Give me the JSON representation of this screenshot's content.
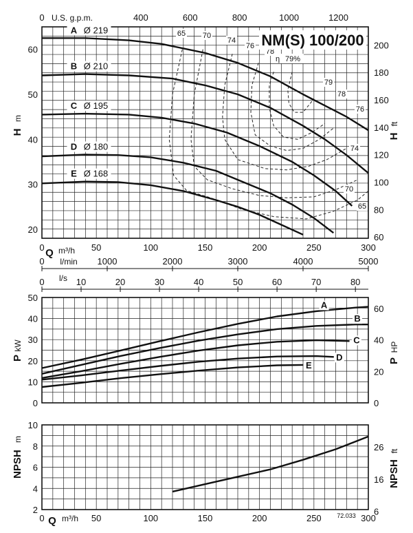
{
  "chart_data": [
    {
      "type": "line",
      "panel": "head",
      "title": "NM(S) 100/200",
      "eta_label": "η",
      "ylabel_left": "H",
      "ylabel_left_unit": "m",
      "ylabel_right": "H",
      "ylabel_right_unit": "ft",
      "xlabel": "Q",
      "xlabel_unit": "m³/h",
      "xlim": [
        0,
        300
      ],
      "ylim": [
        18,
        65
      ],
      "y_ticks": [
        20,
        30,
        40,
        50,
        60
      ],
      "y_right_ticks": [
        60,
        80,
        100,
        120,
        140,
        160,
        180,
        200
      ],
      "x_ticks": [
        0,
        50,
        100,
        150,
        200,
        250,
        300
      ],
      "top_axis_label": "U.S. g.p.m.",
      "top_axis_ticks": [
        0,
        400,
        600,
        800,
        1000,
        1200
      ],
      "grid": true,
      "series": [
        {
          "name": "A",
          "diameter_label": "Ø 219",
          "x": [
            0,
            40,
            80,
            110,
            150,
            180,
            210,
            240,
            260,
            280,
            300
          ],
          "y": [
            62.5,
            62.5,
            62.0,
            61.2,
            59.2,
            57.0,
            54.0,
            50.0,
            47.5,
            45.0,
            42.0
          ]
        },
        {
          "name": "B",
          "diameter_label": "Ø 210",
          "x": [
            0,
            40,
            80,
            120,
            150,
            180,
            210,
            240,
            260,
            280,
            300
          ],
          "y": [
            54.2,
            54.5,
            54.2,
            53.5,
            52.0,
            50.0,
            47.0,
            43.0,
            40.0,
            36.5,
            32.5
          ]
        },
        {
          "name": "C",
          "diameter_label": "Ø 195",
          "x": [
            0,
            40,
            80,
            110,
            140,
            170,
            200,
            230,
            250,
            270,
            285
          ],
          "y": [
            45.5,
            45.7,
            45.5,
            44.8,
            43.5,
            41.5,
            38.5,
            35.0,
            32.0,
            28.5,
            25.2
          ]
        },
        {
          "name": "D",
          "diameter_label": "Ø 180",
          "x": [
            0,
            40,
            70,
            100,
            130,
            160,
            190,
            210,
            230,
            250,
            268
          ],
          "y": [
            36.2,
            36.6,
            36.5,
            36.0,
            34.8,
            33.0,
            30.0,
            28.0,
            25.5,
            22.5,
            19.2
          ]
        },
        {
          "name": "E",
          "diameter_label": "Ø 168",
          "x": [
            0,
            40,
            70,
            100,
            130,
            160,
            180,
            200,
            220,
            240
          ],
          "y": [
            30.2,
            30.6,
            30.5,
            29.8,
            28.5,
            26.5,
            25.0,
            23.2,
            21.0,
            18.8
          ]
        }
      ],
      "efficiency_contours": [
        {
          "label": "65",
          "x": [
            129,
            120,
            117,
            121,
            133,
            155,
            183,
            213,
            243,
            268,
            290,
            300
          ],
          "y": [
            60.0,
            50.0,
            40.0,
            32.0,
            28.6,
            27.0,
            24.5,
            22.8,
            22.3,
            24.0,
            26.5,
            28.5
          ]
        },
        {
          "label": "70",
          "x": [
            148,
            140,
            137,
            140,
            152,
            175,
            200,
            225,
            250,
            270,
            290
          ],
          "y": [
            60.0,
            50.0,
            40.0,
            34.0,
            31.0,
            29.0,
            27.5,
            27.0,
            27.2,
            28.8,
            31.0
          ]
        },
        {
          "label": "74",
          "x": [
            175,
            168,
            166,
            168,
            180,
            205,
            225,
            245,
            262,
            280
          ],
          "y": [
            59.0,
            52.0,
            45.0,
            40.0,
            35.5,
            33.5,
            33.2,
            34.0,
            35.5,
            38.0
          ]
        },
        {
          "label": "76",
          "x": [
            199,
            193,
            192,
            196,
            210,
            225,
            240,
            255,
            268
          ],
          "y": [
            57.0,
            52.0,
            46.0,
            41.0,
            38.5,
            37.5,
            38.0,
            40.0,
            42.5
          ]
        },
        {
          "label": "78",
          "x": [
            213,
            209,
            209,
            213,
            222,
            235,
            248,
            260
          ],
          "y": [
            55.0,
            52.0,
            47.0,
            43.0,
            40.5,
            40.0,
            41.5,
            43.5
          ]
        },
        {
          "label": "79",
          "x": [
            230,
            226,
            227,
            232,
            240,
            250
          ],
          "y": [
            55.0,
            51.0,
            48.0,
            46.0,
            46.0,
            49.0
          ]
        }
      ],
      "efficiency_suffix": "%"
    },
    {
      "type": "line",
      "panel": "power",
      "ylabel_left": "P",
      "ylabel_left_unit": "kW",
      "ylabel_right": "P",
      "ylabel_right_unit": "HP",
      "xlim": [
        0,
        83.3
      ],
      "ylim": [
        0,
        50
      ],
      "y_ticks": [
        0,
        10,
        20,
        30,
        40,
        50
      ],
      "y_right_ticks": [
        0,
        20,
        40,
        60
      ],
      "flow_ticks_lmin": [
        0,
        1000,
        2000,
        3000,
        4000,
        5000
      ],
      "flow_ticks_lmin_label": "l/min",
      "flow_ticks_ls": [
        0,
        10,
        20,
        30,
        40,
        50,
        60,
        70,
        80
      ],
      "flow_ticks_ls_label": "l/s",
      "grid": true,
      "series": [
        {
          "name": "A",
          "x": [
            0,
            10,
            20,
            30,
            40,
            50,
            60,
            70,
            80,
            83.3
          ],
          "y": [
            16.5,
            20.5,
            24.8,
            29.2,
            33.5,
            37.5,
            41.0,
            43.5,
            45.2,
            45.6
          ]
        },
        {
          "name": "B",
          "x": [
            0,
            10,
            20,
            30,
            40,
            50,
            60,
            70,
            80,
            83.3
          ],
          "y": [
            13.8,
            18.0,
            22.2,
            26.0,
            29.5,
            32.5,
            35.0,
            36.5,
            37.2,
            37.2
          ]
        },
        {
          "name": "C",
          "x": [
            0,
            10,
            20,
            30,
            40,
            50,
            60,
            70,
            78.5
          ],
          "y": [
            11.8,
            15.0,
            18.5,
            21.8,
            24.8,
            27.3,
            29.0,
            29.7,
            29.3
          ]
        },
        {
          "name": "D",
          "x": [
            0,
            10,
            20,
            30,
            40,
            50,
            60,
            70,
            74.5
          ],
          "y": [
            11.0,
            13.0,
            15.3,
            17.5,
            19.5,
            21.0,
            22.0,
            22.2,
            21.8
          ]
        },
        {
          "name": "E",
          "x": [
            0,
            10,
            20,
            30,
            40,
            50,
            60,
            66.7
          ],
          "y": [
            7.5,
            9.5,
            11.7,
            13.6,
            15.3,
            16.8,
            17.8,
            18.0
          ]
        }
      ]
    },
    {
      "type": "line",
      "panel": "npsh",
      "ylabel_left": "NPSH",
      "ylabel_left_unit": "m",
      "ylabel_right": "NPSH",
      "ylabel_right_unit": "ft",
      "xlabel": "Q",
      "xlabel_unit": "m³/h",
      "xlim": [
        0,
        300
      ],
      "ylim": [
        2,
        10
      ],
      "y_ticks": [
        2,
        4,
        6,
        8,
        10
      ],
      "y_right_ticks": [
        6,
        16,
        26
      ],
      "x_ticks": [
        0,
        50,
        100,
        150,
        200,
        250,
        300
      ],
      "grid": true,
      "series": [
        {
          "name": "",
          "x": [
            120,
            150,
            180,
            210,
            240,
            270,
            300
          ],
          "y": [
            3.7,
            4.4,
            5.1,
            5.8,
            6.7,
            7.7,
            8.9
          ]
        }
      ]
    }
  ],
  "figure_code": "72.033"
}
